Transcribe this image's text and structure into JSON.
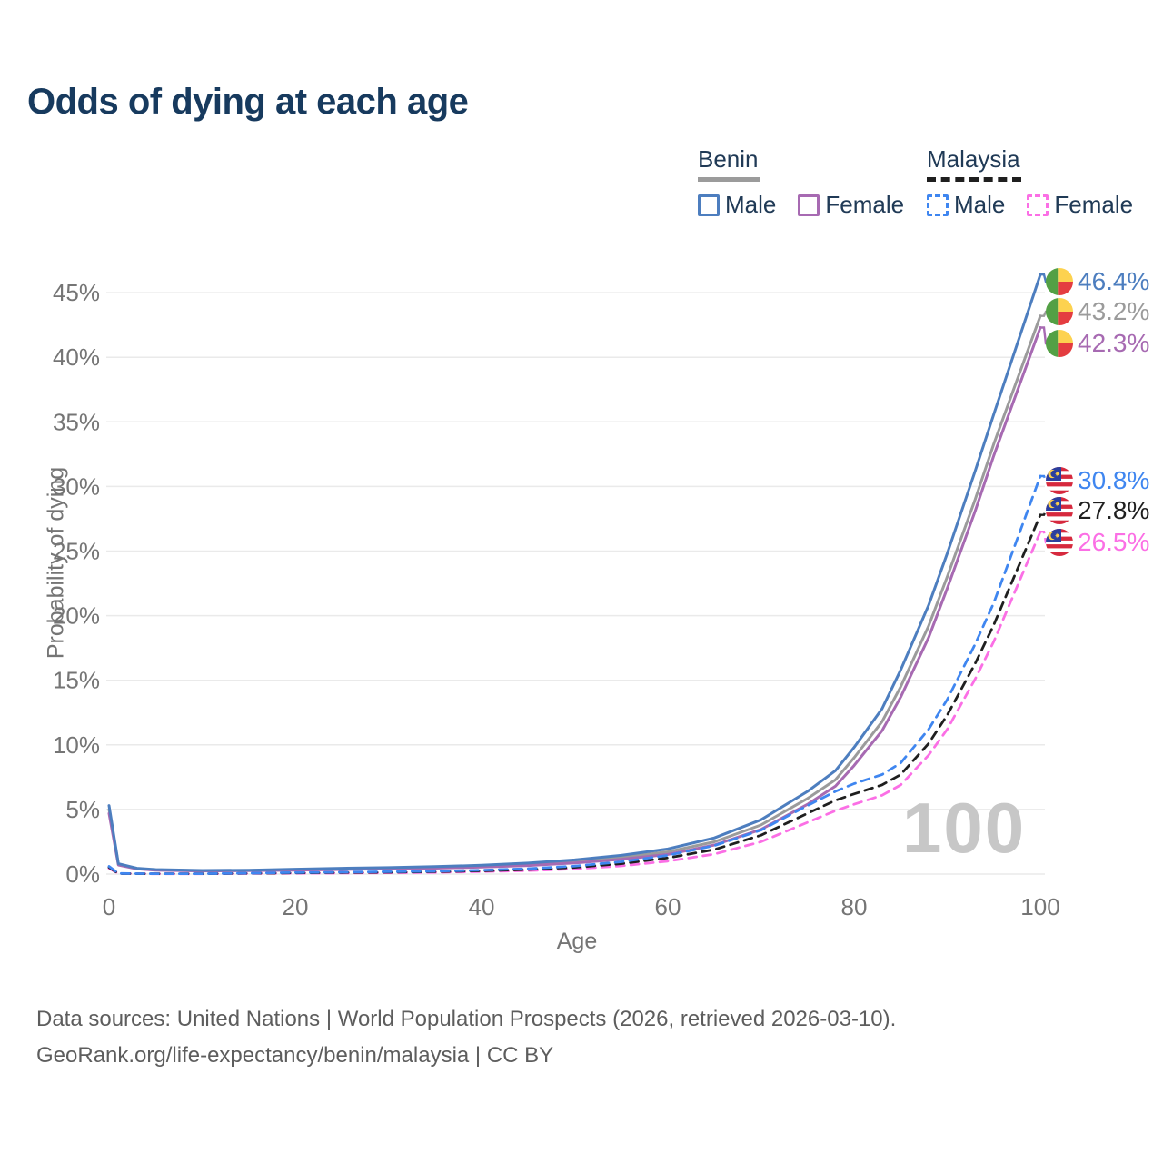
{
  "title": "Odds of dying at each age",
  "watermark": "100",
  "legend": {
    "groups": [
      {
        "label": "Benin",
        "line_style": "solid",
        "line_color": "#9b9b9b",
        "items": [
          {
            "label": "Male",
            "color": "#4d7ebf",
            "dashed": false
          },
          {
            "label": "Female",
            "color": "#a76ab2",
            "dashed": false
          }
        ]
      },
      {
        "label": "Malaysia",
        "line_style": "dashed",
        "line_color": "#1f1f1f",
        "items": [
          {
            "label": "Male",
            "color": "#3f86f0",
            "dashed": true
          },
          {
            "label": "Female",
            "color": "#fb6fe5",
            "dashed": true
          }
        ]
      }
    ]
  },
  "chart_data": {
    "type": "line",
    "title": "Odds of dying at each age",
    "xlabel": "Age",
    "ylabel": "Probability of dying",
    "xlim": [
      0,
      100
    ],
    "ylim_pct": [
      0,
      46.5
    ],
    "xticks": [
      0,
      20,
      40,
      60,
      80,
      100
    ],
    "yticks_pct": [
      0,
      5,
      10,
      15,
      20,
      25,
      30,
      35,
      40,
      45
    ],
    "grid": "horizontal-only",
    "legend_position": "top-right",
    "series": [
      {
        "name": "Benin Male",
        "country": "Benin",
        "sex": "Male",
        "color": "#4d7ebf",
        "dashed": false,
        "end_label": "46.4%",
        "end_value_pct": 46.4,
        "points": [
          [
            0,
            5.3
          ],
          [
            1,
            0.8
          ],
          [
            3,
            0.45
          ],
          [
            5,
            0.35
          ],
          [
            10,
            0.28
          ],
          [
            15,
            0.3
          ],
          [
            20,
            0.38
          ],
          [
            25,
            0.45
          ],
          [
            30,
            0.5
          ],
          [
            35,
            0.58
          ],
          [
            40,
            0.68
          ],
          [
            45,
            0.85
          ],
          [
            50,
            1.1
          ],
          [
            55,
            1.45
          ],
          [
            60,
            1.95
          ],
          [
            65,
            2.8
          ],
          [
            70,
            4.2
          ],
          [
            75,
            6.4
          ],
          [
            78,
            8.0
          ],
          [
            80,
            9.8
          ],
          [
            83,
            12.8
          ],
          [
            85,
            15.8
          ],
          [
            88,
            20.8
          ],
          [
            90,
            24.8
          ],
          [
            93,
            31.2
          ],
          [
            95,
            35.6
          ],
          [
            100,
            46.4
          ]
        ]
      },
      {
        "name": "Benin",
        "country": "Benin",
        "sex": "Both",
        "color": "#9b9b9b",
        "dashed": false,
        "end_label": "43.2%",
        "end_value_pct": 43.2,
        "points": [
          [
            0,
            5.0
          ],
          [
            1,
            0.75
          ],
          [
            3,
            0.42
          ],
          [
            5,
            0.32
          ],
          [
            10,
            0.26
          ],
          [
            15,
            0.28
          ],
          [
            20,
            0.34
          ],
          [
            25,
            0.4
          ],
          [
            30,
            0.45
          ],
          [
            35,
            0.52
          ],
          [
            40,
            0.6
          ],
          [
            45,
            0.75
          ],
          [
            50,
            0.97
          ],
          [
            55,
            1.28
          ],
          [
            60,
            1.72
          ],
          [
            65,
            2.5
          ],
          [
            70,
            3.8
          ],
          [
            75,
            5.85
          ],
          [
            78,
            7.3
          ],
          [
            80,
            9.0
          ],
          [
            83,
            11.8
          ],
          [
            85,
            14.5
          ],
          [
            88,
            19.2
          ],
          [
            90,
            23.0
          ],
          [
            93,
            29.0
          ],
          [
            95,
            33.3
          ],
          [
            100,
            43.2
          ]
        ]
      },
      {
        "name": "Benin Female",
        "country": "Benin",
        "sex": "Female",
        "color": "#a76ab2",
        "dashed": false,
        "end_label": "42.3%",
        "end_value_pct": 42.3,
        "points": [
          [
            0,
            4.7
          ],
          [
            1,
            0.7
          ],
          [
            3,
            0.4
          ],
          [
            5,
            0.3
          ],
          [
            10,
            0.24
          ],
          [
            15,
            0.26
          ],
          [
            20,
            0.3
          ],
          [
            25,
            0.35
          ],
          [
            30,
            0.4
          ],
          [
            35,
            0.46
          ],
          [
            40,
            0.54
          ],
          [
            45,
            0.66
          ],
          [
            50,
            0.86
          ],
          [
            55,
            1.14
          ],
          [
            60,
            1.52
          ],
          [
            65,
            2.25
          ],
          [
            70,
            3.45
          ],
          [
            75,
            5.4
          ],
          [
            78,
            6.8
          ],
          [
            80,
            8.4
          ],
          [
            83,
            11.1
          ],
          [
            85,
            13.7
          ],
          [
            88,
            18.3
          ],
          [
            90,
            22.1
          ],
          [
            93,
            28.1
          ],
          [
            95,
            32.4
          ],
          [
            100,
            42.3
          ]
        ]
      },
      {
        "name": "Malaysia Male",
        "country": "Malaysia",
        "sex": "Male",
        "color": "#3f86f0",
        "dashed": true,
        "end_label": "30.8%",
        "end_value_pct": 30.8,
        "points": [
          [
            0,
            0.6
          ],
          [
            1,
            0.05
          ],
          [
            3,
            0.035
          ],
          [
            5,
            0.03
          ],
          [
            10,
            0.03
          ],
          [
            15,
            0.07
          ],
          [
            20,
            0.12
          ],
          [
            25,
            0.15
          ],
          [
            30,
            0.18
          ],
          [
            35,
            0.22
          ],
          [
            40,
            0.3
          ],
          [
            45,
            0.42
          ],
          [
            50,
            0.62
          ],
          [
            55,
            0.95
          ],
          [
            60,
            1.45
          ],
          [
            65,
            2.2
          ],
          [
            70,
            3.4
          ],
          [
            75,
            5.3
          ],
          [
            78,
            6.4
          ],
          [
            80,
            7.0
          ],
          [
            83,
            7.7
          ],
          [
            85,
            8.6
          ],
          [
            88,
            11.2
          ],
          [
            90,
            13.5
          ],
          [
            93,
            17.8
          ],
          [
            95,
            21.0
          ],
          [
            100,
            30.8
          ]
        ]
      },
      {
        "name": "Malaysia",
        "country": "Malaysia",
        "sex": "Both",
        "color": "#1f1f1f",
        "dashed": true,
        "end_label": "27.8%",
        "end_value_pct": 27.8,
        "points": [
          [
            0,
            0.52
          ],
          [
            1,
            0.045
          ],
          [
            3,
            0.03
          ],
          [
            5,
            0.025
          ],
          [
            10,
            0.025
          ],
          [
            15,
            0.055
          ],
          [
            20,
            0.09
          ],
          [
            25,
            0.12
          ],
          [
            30,
            0.14
          ],
          [
            35,
            0.18
          ],
          [
            40,
            0.25
          ],
          [
            45,
            0.35
          ],
          [
            50,
            0.52
          ],
          [
            55,
            0.8
          ],
          [
            60,
            1.25
          ],
          [
            65,
            1.9
          ],
          [
            70,
            3.0
          ],
          [
            75,
            4.7
          ],
          [
            78,
            5.7
          ],
          [
            80,
            6.2
          ],
          [
            83,
            6.9
          ],
          [
            85,
            7.7
          ],
          [
            88,
            10.1
          ],
          [
            90,
            12.3
          ],
          [
            93,
            16.3
          ],
          [
            95,
            19.3
          ],
          [
            100,
            27.8
          ]
        ]
      },
      {
        "name": "Malaysia Female",
        "country": "Malaysia",
        "sex": "Female",
        "color": "#fb6fe5",
        "dashed": true,
        "end_label": "26.5%",
        "end_value_pct": 26.5,
        "points": [
          [
            0,
            0.45
          ],
          [
            1,
            0.04
          ],
          [
            3,
            0.025
          ],
          [
            5,
            0.02
          ],
          [
            10,
            0.02
          ],
          [
            15,
            0.04
          ],
          [
            20,
            0.06
          ],
          [
            25,
            0.08
          ],
          [
            30,
            0.1
          ],
          [
            35,
            0.13
          ],
          [
            40,
            0.19
          ],
          [
            45,
            0.27
          ],
          [
            50,
            0.4
          ],
          [
            55,
            0.63
          ],
          [
            60,
            1.0
          ],
          [
            65,
            1.55
          ],
          [
            70,
            2.5
          ],
          [
            75,
            4.0
          ],
          [
            78,
            4.9
          ],
          [
            80,
            5.4
          ],
          [
            83,
            6.1
          ],
          [
            85,
            6.9
          ],
          [
            88,
            9.2
          ],
          [
            90,
            11.2
          ],
          [
            93,
            15.1
          ],
          [
            95,
            18.0
          ],
          [
            100,
            26.5
          ]
        ]
      }
    ]
  },
  "footer": {
    "line1": "Data sources: United Nations | World Population Prospects (2026, retrieved 2026-03-10).",
    "line2": "GeoRank.org/life-expectancy/benin/malaysia | CC BY"
  },
  "colors": {
    "title_text": "#173a5e",
    "legend_text": "#203a56",
    "axis_text": "#757575",
    "gridline": "#eaeaea",
    "watermark": "#c7c7c7",
    "footer_text": "#5d5d5d",
    "benin_flag": {
      "green": "#53a045",
      "yellow": "#fdd24f",
      "red": "#e43d40"
    },
    "malaysia_flag": {
      "blue": "#2b3f9e",
      "red": "#d6293e",
      "white": "#ffffff",
      "yellow": "#ffd24a"
    }
  }
}
